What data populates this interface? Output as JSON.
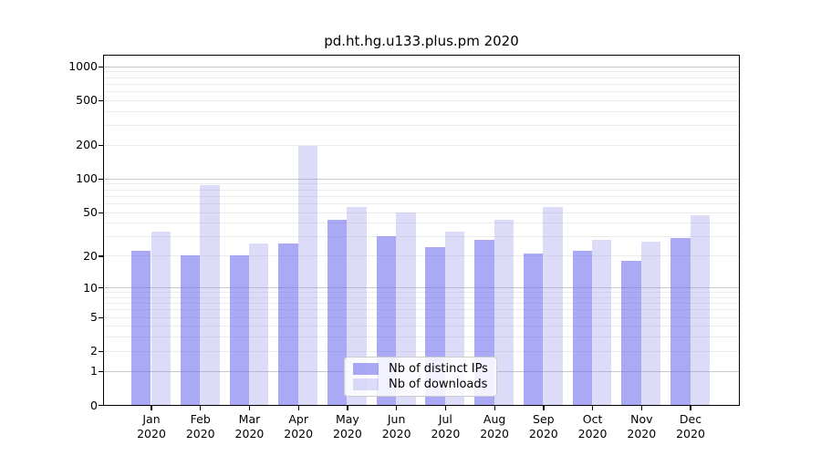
{
  "title": "pd.ht.hg.u133.plus.pm 2020",
  "colors": {
    "bar_distinct_ips": "#a9a9f4",
    "bar_downloads": "#dcdcf8",
    "major_grid": "#c9c9c9",
    "minor_grid": "#ececec",
    "axis": "#000000",
    "background": "#ffffff"
  },
  "chart_data": {
    "type": "bar",
    "title": "pd.ht.hg.u133.plus.pm 2020",
    "categories": [
      "Jan",
      "Feb",
      "Mar",
      "Apr",
      "May",
      "Jun",
      "Jul",
      "Aug",
      "Sep",
      "Oct",
      "Nov",
      "Dec"
    ],
    "category_year": "2020",
    "series": [
      {
        "name": "Nb of distinct IPs",
        "color": "rgba(112,112,238,0.6)",
        "solid_color": "#a9a9f4",
        "values": [
          22,
          20,
          20,
          26,
          43,
          30,
          24,
          28,
          21,
          22,
          18,
          29
        ]
      },
      {
        "name": "Nb of downloads",
        "color": "rgba(149,149,235,0.33)",
        "solid_color": "#dcdcf8",
        "values": [
          33,
          87,
          26,
          195,
          56,
          50,
          33,
          43,
          56,
          28,
          27,
          47
        ]
      }
    ],
    "xlabel": "",
    "ylabel": "",
    "yscale": "log10(value+1)",
    "ylim": [
      0,
      1000
    ],
    "y_tick_values": [
      1000,
      500,
      200,
      100,
      50,
      20,
      10,
      5,
      2,
      1,
      0
    ],
    "y_tick_labels": [
      "1000",
      "500",
      "200",
      "100",
      "50",
      "20",
      "10",
      "5",
      "2",
      "1",
      "0"
    ],
    "y_major_gridlines": [
      1,
      10,
      100,
      1000
    ],
    "y_minor_gridlines": [
      2,
      3,
      4,
      5,
      6,
      7,
      8,
      9,
      20,
      30,
      40,
      50,
      60,
      70,
      80,
      90,
      200,
      300,
      400,
      500,
      600,
      700,
      800,
      900
    ],
    "grid": "on",
    "legend_position": "inside lower-center"
  }
}
